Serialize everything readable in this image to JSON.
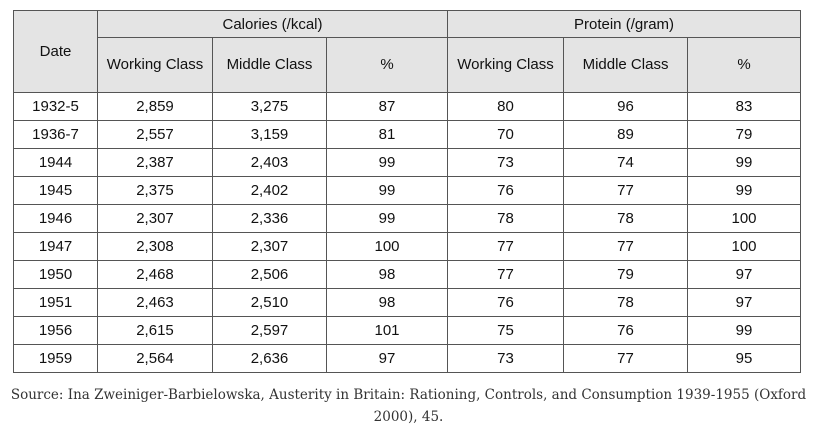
{
  "table": {
    "date_header": "Date",
    "groups": [
      {
        "title": "Calories (/kcal)",
        "columns": [
          "Working Class",
          "Middle Class",
          "%"
        ]
      },
      {
        "title": "Protein (/gram)",
        "columns": [
          "Working Class",
          "Middle Class",
          "%"
        ]
      }
    ],
    "rows": [
      [
        "1932-5",
        "2,859",
        "3,275",
        "87",
        "80",
        "96",
        "83"
      ],
      [
        "1936-7",
        "2,557",
        "3,159",
        "81",
        "70",
        "89",
        "79"
      ],
      [
        "1944",
        "2,387",
        "2,403",
        "99",
        "73",
        "74",
        "99"
      ],
      [
        "1945",
        "2,375",
        "2,402",
        "99",
        "76",
        "77",
        "99"
      ],
      [
        "1946",
        "2,307",
        "2,336",
        "99",
        "78",
        "78",
        "100"
      ],
      [
        "1947",
        "2,308",
        "2,307",
        "100",
        "77",
        "77",
        "100"
      ],
      [
        "1950",
        "2,468",
        "2,506",
        "98",
        "77",
        "79",
        "97"
      ],
      [
        "1951",
        "2,463",
        "2,510",
        "98",
        "76",
        "78",
        "97"
      ],
      [
        "1956",
        "2,615",
        "2,597",
        "101",
        "75",
        "76",
        "99"
      ],
      [
        "1959",
        "2,564",
        "2,636",
        "97",
        "73",
        "77",
        "95"
      ]
    ]
  },
  "source": "Source: Ina Zweiniger-Barbielowska, Austerity in Britain: Rationing, Controls, and Consumption 1939-1955 (Oxford 2000), 45."
}
